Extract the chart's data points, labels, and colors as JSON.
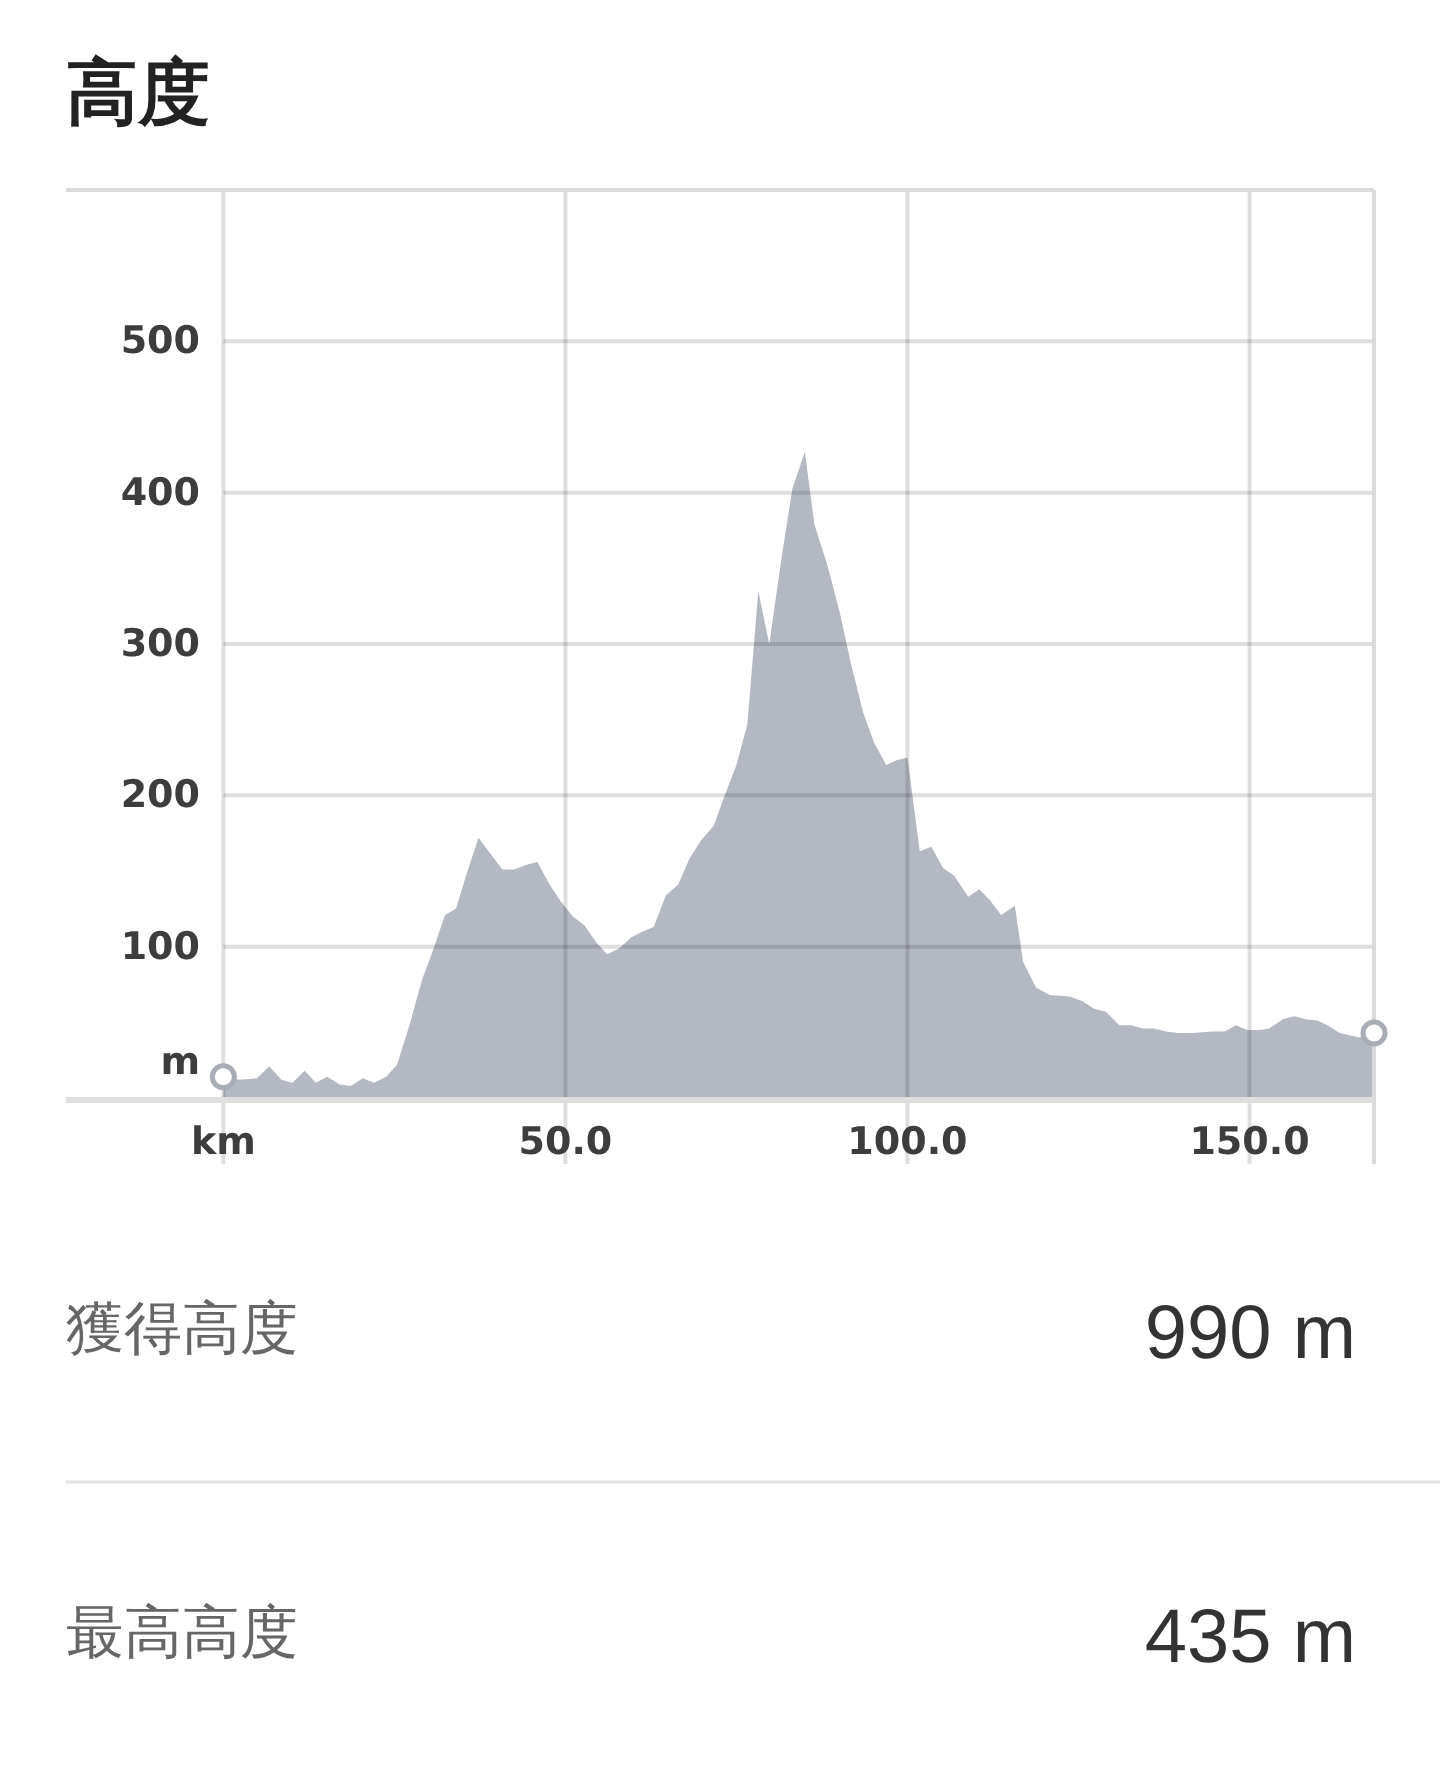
{
  "chart_data": {
    "type": "area",
    "title": "高度",
    "ylabel": "m",
    "xlim": [
      -23,
      168.2
    ],
    "ylim": [
      0,
      600
    ],
    "xticks": [
      {
        "value": 0,
        "label": "km"
      },
      {
        "value": 50,
        "label": "50.0"
      },
      {
        "value": 100,
        "label": "100.0"
      },
      {
        "value": 150,
        "label": "150.0"
      }
    ],
    "yticks": [
      100,
      200,
      300,
      400,
      500
    ],
    "grid": true,
    "series": [
      {
        "color": "#b4b8c2",
        "x": [
          0,
          2.3,
          4.9,
          6.7,
          8.5,
          10.1,
          11.9,
          13.5,
          15.2,
          17,
          18.6,
          20.4,
          22,
          23.8,
          25.4,
          27.2,
          29.1,
          30.6,
          32.4,
          34,
          35.7,
          37.3,
          39.1,
          40.8,
          42.5,
          44.2,
          45.9,
          47.7,
          49.3,
          51.1,
          52.8,
          54.5,
          56.1,
          57.9,
          59.6,
          61.3,
          62.9,
          64.7,
          66.5,
          68.1,
          69.8,
          71.7,
          73.3,
          75,
          76.6,
          78.2,
          79.8,
          81.6,
          83.2,
          85,
          86.4,
          88.3,
          90.1,
          91.7,
          93.5,
          95.1,
          96.9,
          98.3,
          100,
          101.8,
          103.5,
          105.2,
          106.8,
          108.9,
          110.5,
          112,
          113.7,
          115.7,
          116.9,
          118.8,
          120.8,
          123.7,
          125.6,
          127.3,
          129,
          131,
          132.7,
          134.4,
          136,
          137.8,
          139.6,
          141.7,
          144.6,
          146.4,
          148,
          149.7,
          151.5,
          152.9,
          154.9,
          156.5,
          158.3,
          160,
          161.4,
          163.2,
          166.1,
          168.2
        ],
        "values": [
          14,
          12,
          13,
          21,
          12,
          10,
          18,
          10,
          14,
          9,
          8,
          13,
          10,
          14,
          22,
          48,
          79,
          97,
          121,
          125,
          150,
          172,
          161,
          151,
          151,
          154,
          156,
          141,
          130,
          120,
          114,
          103,
          95,
          99,
          106,
          110,
          113,
          134,
          141,
          158,
          170,
          180,
          200,
          220,
          247,
          335,
          300,
          357,
          403,
          427,
          379,
          352,
          321,
          288,
          255,
          235,
          220,
          223,
          225,
          163,
          166,
          152,
          147,
          133,
          138,
          131,
          121,
          127,
          90,
          73,
          68,
          67,
          64,
          59,
          57,
          48,
          48,
          46,
          46,
          44,
          43,
          43,
          44,
          44,
          48,
          45,
          45,
          46,
          52,
          54,
          52,
          51,
          48,
          43,
          40,
          43
        ]
      },
      {
        "type": "scatter",
        "marker": "circle",
        "color": "#a8acb4",
        "x": [
          0,
          168.2
        ],
        "values": [
          14,
          43
        ]
      }
    ],
    "annotations": [
      "獲得高度",
      "990 m",
      "最高高度",
      "435 m"
    ]
  }
}
